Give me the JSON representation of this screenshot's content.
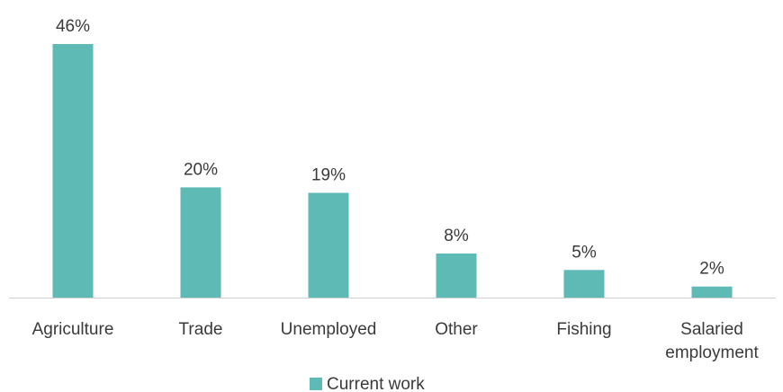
{
  "chart_data": {
    "type": "bar",
    "categories": [
      "Agriculture",
      "Trade",
      "Unemployed",
      "Other",
      "Fishing",
      "Salaried employment"
    ],
    "category_lines": [
      [
        "Agriculture"
      ],
      [
        "Trade"
      ],
      [
        "Unemployed"
      ],
      [
        "Other"
      ],
      [
        "Fishing"
      ],
      [
        "Salaried",
        "employment"
      ]
    ],
    "series": [
      {
        "name": "Current work",
        "values": [
          46,
          20,
          19,
          8,
          5,
          2
        ]
      }
    ],
    "data_labels": [
      "46%",
      "20%",
      "19%",
      "8%",
      "5%",
      "2%"
    ],
    "ylim": [
      0,
      46
    ],
    "grid": false,
    "legend_position": "bottom",
    "bar_color": "#5ebab4",
    "axis_color": "#d0d0d0"
  }
}
